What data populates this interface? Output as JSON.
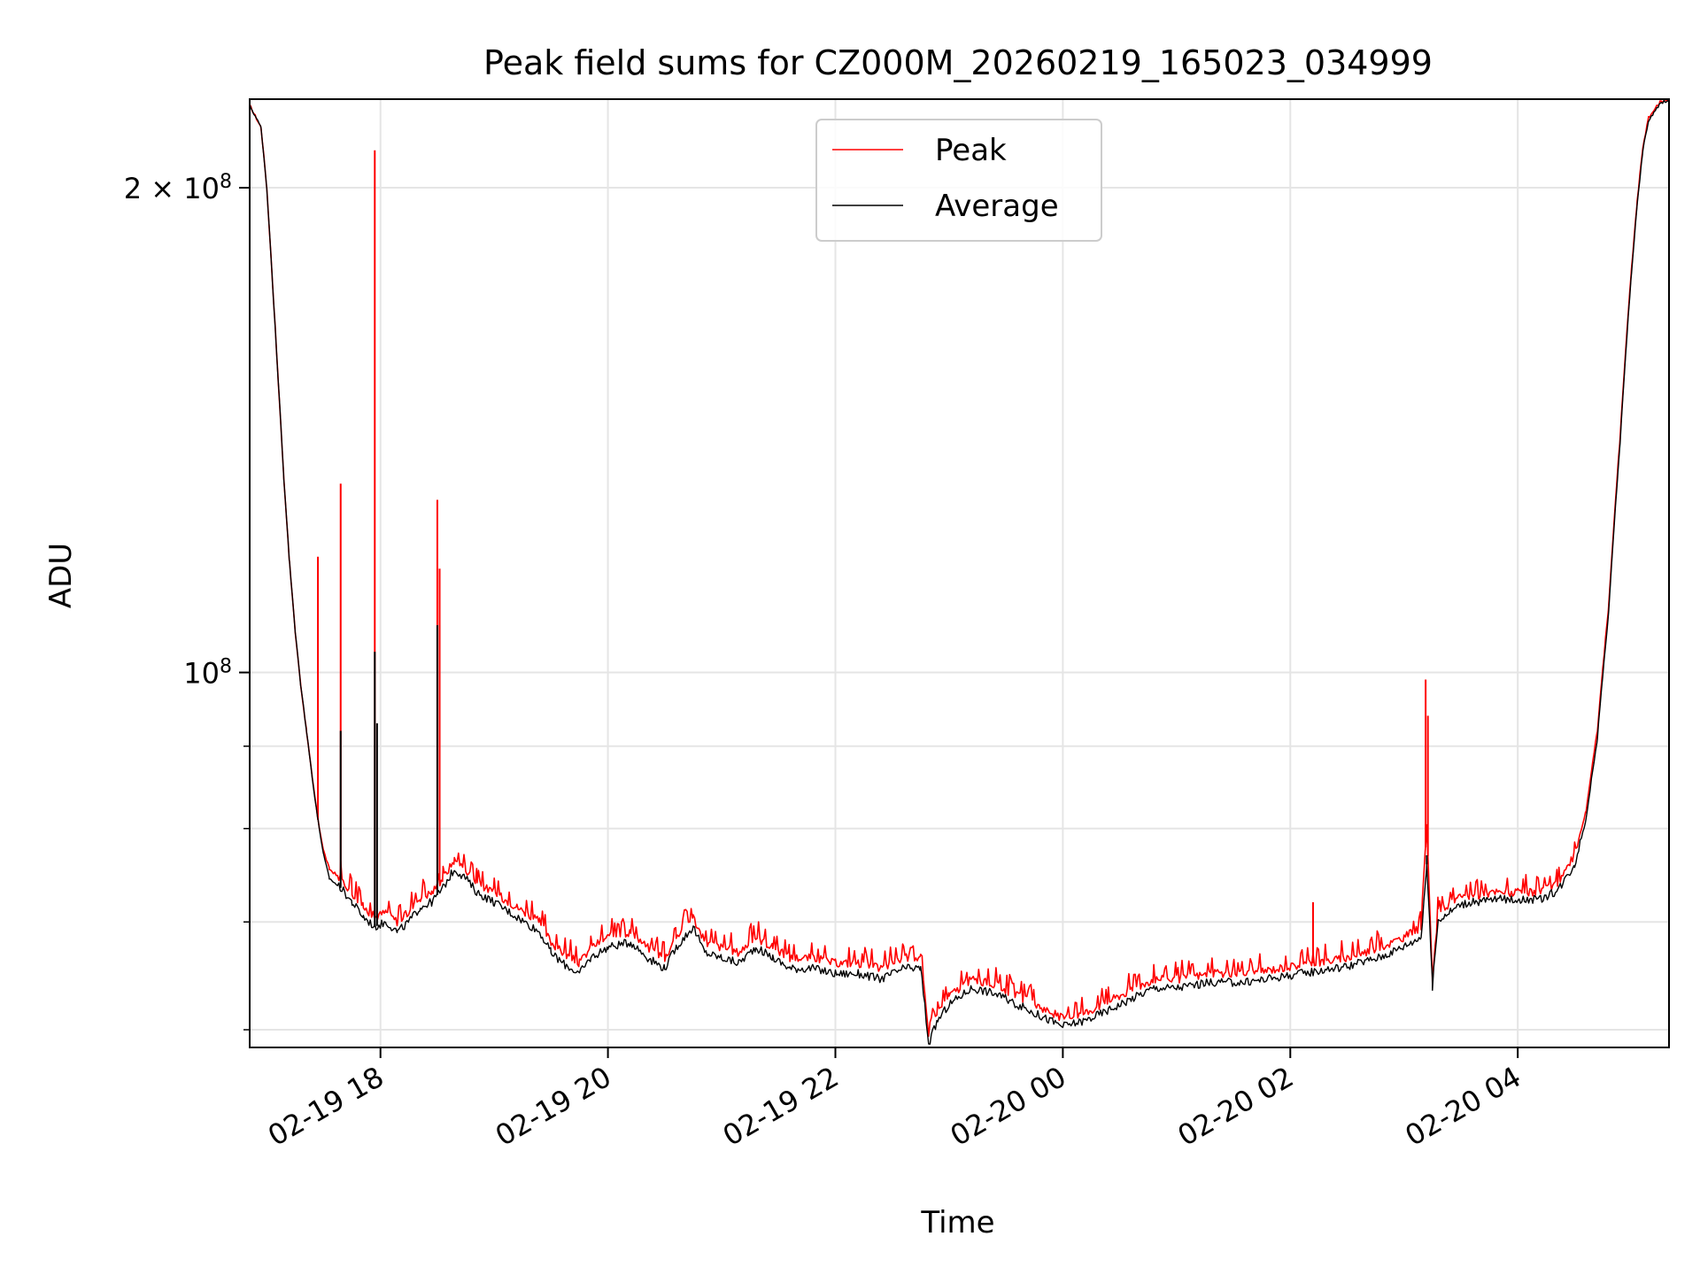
{
  "chart_data": {
    "type": "line",
    "title": "Peak field sums for CZ000M_20260219_165023_034999",
    "xlabel": "Time",
    "ylabel": "ADU",
    "x_unit": "hours since 2026-02-19 00:00",
    "xlim": [
      16.85,
      29.33
    ],
    "ylim": [
      58500000,
      227000000
    ],
    "yscale": "log",
    "grid": true,
    "legend_position": "top-center",
    "x_ticks": [
      {
        "x": 18,
        "label": "02-19 18"
      },
      {
        "x": 20,
        "label": "02-19 20"
      },
      {
        "x": 22,
        "label": "02-19 22"
      },
      {
        "x": 24,
        "label": "02-20 00"
      },
      {
        "x": 26,
        "label": "02-20 02"
      },
      {
        "x": 28,
        "label": "02-20 04"
      }
    ],
    "y_major_ticks": [
      {
        "y": 100000000,
        "base": "10",
        "exp": "8",
        "coef": ""
      },
      {
        "y": 200000000,
        "base": "10",
        "exp": "8",
        "coef": "2 × "
      }
    ],
    "y_minor_ticks": [
      60000000,
      70000000,
      80000000,
      90000000
    ],
    "series": [
      {
        "name": "Peak",
        "color": "#ff0000",
        "points": [
          [
            16.85,
            225000000
          ],
          [
            16.95,
            218000000
          ],
          [
            17.0,
            200000000
          ],
          [
            17.05,
            175000000
          ],
          [
            17.1,
            152000000
          ],
          [
            17.15,
            132000000
          ],
          [
            17.2,
            117000000
          ],
          [
            17.25,
            106000000
          ],
          [
            17.3,
            98000000
          ],
          [
            17.35,
            92000000
          ],
          [
            17.4,
            86000000
          ],
          [
            17.45,
            81000000
          ],
          [
            17.5,
            77500000
          ],
          [
            17.55,
            75500000
          ],
          [
            17.65,
            74500000
          ],
          [
            17.75,
            73000000
          ],
          [
            17.85,
            71500000
          ],
          [
            17.95,
            70500000
          ],
          [
            18.05,
            71000000
          ],
          [
            18.15,
            70000000
          ],
          [
            18.25,
            71000000
          ],
          [
            18.35,
            72500000
          ],
          [
            18.45,
            73000000
          ],
          [
            18.55,
            74500000
          ],
          [
            18.65,
            76500000
          ],
          [
            18.75,
            75500000
          ],
          [
            18.85,
            74000000
          ],
          [
            19.0,
            73000000
          ],
          [
            19.2,
            71500000
          ],
          [
            19.4,
            70000000
          ],
          [
            19.5,
            68000000
          ],
          [
            19.6,
            67000000
          ],
          [
            19.75,
            66000000
          ],
          [
            19.85,
            67500000
          ],
          [
            20.0,
            68500000
          ],
          [
            20.2,
            69000000
          ],
          [
            20.35,
            67500000
          ],
          [
            20.5,
            66500000
          ],
          [
            20.6,
            68500000
          ],
          [
            20.75,
            70500000
          ],
          [
            20.85,
            68000000
          ],
          [
            21.0,
            67500000
          ],
          [
            21.15,
            67000000
          ],
          [
            21.3,
            68500000
          ],
          [
            21.45,
            67500000
          ],
          [
            21.6,
            66500000
          ],
          [
            21.8,
            66500000
          ],
          [
            22.0,
            66000000
          ],
          [
            22.2,
            66000000
          ],
          [
            22.4,
            65500000
          ],
          [
            22.6,
            66500000
          ],
          [
            22.75,
            66500000
          ],
          [
            22.82,
            59500000
          ],
          [
            22.9,
            61500000
          ],
          [
            23.0,
            63000000
          ],
          [
            23.2,
            64500000
          ],
          [
            23.4,
            64000000
          ],
          [
            23.6,
            63000000
          ],
          [
            23.8,
            62000000
          ],
          [
            24.0,
            61000000
          ],
          [
            24.2,
            61500000
          ],
          [
            24.4,
            62500000
          ],
          [
            24.6,
            63500000
          ],
          [
            24.8,
            64500000
          ],
          [
            25.0,
            64500000
          ],
          [
            25.3,
            65000000
          ],
          [
            25.6,
            65000000
          ],
          [
            25.9,
            65500000
          ],
          [
            26.2,
            66000000
          ],
          [
            26.5,
            66500000
          ],
          [
            26.8,
            67500000
          ],
          [
            27.0,
            68500000
          ],
          [
            27.15,
            69500000
          ],
          [
            27.2,
            80000000
          ],
          [
            27.25,
            64500000
          ],
          [
            27.3,
            71000000
          ],
          [
            27.5,
            72500000
          ],
          [
            27.8,
            73000000
          ],
          [
            28.0,
            73000000
          ],
          [
            28.2,
            73000000
          ],
          [
            28.35,
            74000000
          ],
          [
            28.5,
            77000000
          ],
          [
            28.6,
            82000000
          ],
          [
            28.7,
            92000000
          ],
          [
            28.8,
            110000000
          ],
          [
            28.9,
            140000000
          ],
          [
            29.0,
            178000000
          ],
          [
            29.05,
            196000000
          ],
          [
            29.1,
            212000000
          ],
          [
            29.15,
            221000000
          ],
          [
            29.25,
            226000000
          ],
          [
            29.33,
            227000000
          ]
        ],
        "spikes": [
          [
            17.45,
            118000000
          ],
          [
            17.65,
            131000000
          ],
          [
            17.95,
            211000000
          ],
          [
            18.5,
            128000000
          ],
          [
            18.52,
            116000000
          ],
          [
            27.19,
            99000000
          ],
          [
            27.21,
            94000000
          ],
          [
            26.2,
            72000000
          ]
        ]
      },
      {
        "name": "Average",
        "color": "#000000",
        "points": [
          [
            16.85,
            225000000
          ],
          [
            16.95,
            218000000
          ],
          [
            17.0,
            200000000
          ],
          [
            17.05,
            175000000
          ],
          [
            17.1,
            152000000
          ],
          [
            17.15,
            132000000
          ],
          [
            17.2,
            117000000
          ],
          [
            17.25,
            106000000
          ],
          [
            17.3,
            98000000
          ],
          [
            17.35,
            92000000
          ],
          [
            17.4,
            86000000
          ],
          [
            17.45,
            81000000
          ],
          [
            17.5,
            77000000
          ],
          [
            17.55,
            74500000
          ],
          [
            17.65,
            73500000
          ],
          [
            17.75,
            72000000
          ],
          [
            17.85,
            70500000
          ],
          [
            17.95,
            69500000
          ],
          [
            18.05,
            70000000
          ],
          [
            18.15,
            69000000
          ],
          [
            18.25,
            70000000
          ],
          [
            18.35,
            71500000
          ],
          [
            18.45,
            72000000
          ],
          [
            18.55,
            73500000
          ],
          [
            18.65,
            75500000
          ],
          [
            18.75,
            74500000
          ],
          [
            18.85,
            73000000
          ],
          [
            19.0,
            72000000
          ],
          [
            19.2,
            70500000
          ],
          [
            19.4,
            69000000
          ],
          [
            19.5,
            67000000
          ],
          [
            19.6,
            66000000
          ],
          [
            19.75,
            65000000
          ],
          [
            19.85,
            66500000
          ],
          [
            20.0,
            67500000
          ],
          [
            20.2,
            68000000
          ],
          [
            20.35,
            66500000
          ],
          [
            20.5,
            65500000
          ],
          [
            20.6,
            67500000
          ],
          [
            20.75,
            69500000
          ],
          [
            20.85,
            67000000
          ],
          [
            21.0,
            66500000
          ],
          [
            21.15,
            66000000
          ],
          [
            21.3,
            67500000
          ],
          [
            21.45,
            66500000
          ],
          [
            21.6,
            65500000
          ],
          [
            21.8,
            65500000
          ],
          [
            22.0,
            65000000
          ],
          [
            22.2,
            65000000
          ],
          [
            22.4,
            64500000
          ],
          [
            22.6,
            65500000
          ],
          [
            22.75,
            65500000
          ],
          [
            22.82,
            58800000
          ],
          [
            22.9,
            60800000
          ],
          [
            23.0,
            62200000
          ],
          [
            23.2,
            63700000
          ],
          [
            23.4,
            63200000
          ],
          [
            23.6,
            62200000
          ],
          [
            23.8,
            61200000
          ],
          [
            24.0,
            60300000
          ],
          [
            24.2,
            60800000
          ],
          [
            24.4,
            61700000
          ],
          [
            24.6,
            62700000
          ],
          [
            24.8,
            63700000
          ],
          [
            25.0,
            63700000
          ],
          [
            25.3,
            64200000
          ],
          [
            25.6,
            64200000
          ],
          [
            25.9,
            64700000
          ],
          [
            26.2,
            65200000
          ],
          [
            26.5,
            65700000
          ],
          [
            26.8,
            66600000
          ],
          [
            27.0,
            67600000
          ],
          [
            27.15,
            68500000
          ],
          [
            27.2,
            76000000
          ],
          [
            27.25,
            63800000
          ],
          [
            27.3,
            70200000
          ],
          [
            27.5,
            71800000
          ],
          [
            27.8,
            72300000
          ],
          [
            28.0,
            72300000
          ],
          [
            28.2,
            72300000
          ],
          [
            28.35,
            73200000
          ],
          [
            28.5,
            76000000
          ],
          [
            28.6,
            81000000
          ],
          [
            28.7,
            91000000
          ],
          [
            28.8,
            109000000
          ],
          [
            28.9,
            139000000
          ],
          [
            29.0,
            177000000
          ],
          [
            29.05,
            195000000
          ],
          [
            29.1,
            211000000
          ],
          [
            29.15,
            220000000
          ],
          [
            29.25,
            225500000
          ],
          [
            29.33,
            227000000
          ]
        ],
        "spikes": [
          [
            17.65,
            92000000
          ],
          [
            17.95,
            103000000
          ],
          [
            17.97,
            93000000
          ],
          [
            18.5,
            107000000
          ],
          [
            27.2,
            77000000
          ]
        ]
      }
    ]
  }
}
